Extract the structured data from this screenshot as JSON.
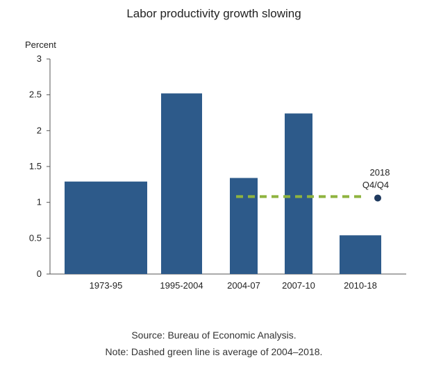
{
  "chart_data": {
    "type": "bar",
    "title": "Labor productivity growth slowing",
    "ylabel": "Percent",
    "ylim": [
      0,
      3
    ],
    "yticks": [
      "0",
      "0.5",
      "1",
      "1.5",
      "2",
      "2.5",
      "3"
    ],
    "categories": [
      "1973-95",
      "1995-2004",
      "2004-07",
      "2007-10",
      "2010-18"
    ],
    "values": [
      1.29,
      2.52,
      1.34,
      2.24,
      0.54
    ],
    "bar_color": "#2d5a8a",
    "average_line": {
      "value": 1.08,
      "color": "#8fb33f",
      "style": "dashed"
    },
    "point": {
      "label_line1": "2018",
      "label_line2": "Q4/Q4",
      "value": 1.06,
      "color": "#1f3a5f"
    },
    "source": "Source: Bureau of Economic Analysis.",
    "note": "Note: Dashed green line is average of 2004–2018."
  }
}
